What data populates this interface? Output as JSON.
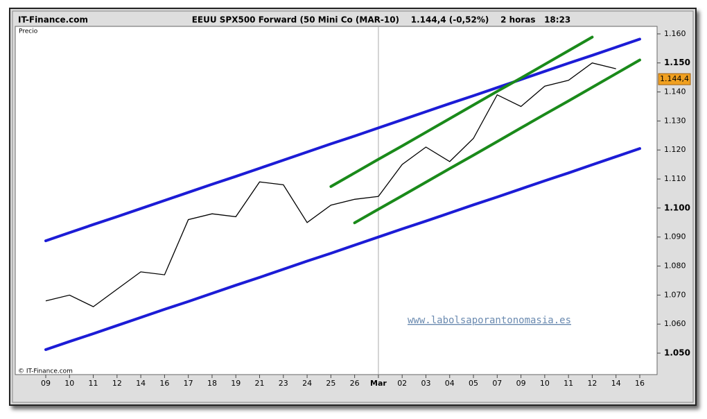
{
  "chart_data": {
    "type": "line",
    "source": "IT-Finance.com",
    "title": "EEUU SPX500 Forward (50 Mini Co (MAR-10)    1.144,4 (-0,52%)    2 horas   18:23",
    "y_label": "Precio",
    "copyright": "© IT-Finance.com",
    "watermark": "www.labolsaporantonomasia.es",
    "categories": [
      "09",
      "10",
      "11",
      "12",
      "14",
      "16",
      "17",
      "18",
      "19",
      "21",
      "23",
      "24",
      "25",
      "26",
      "Mar",
      "02",
      "03",
      "04",
      "05",
      "07",
      "09",
      "10",
      "11",
      "12",
      "14",
      "16"
    ],
    "series": [
      {
        "name": "Precio",
        "color": "#000000",
        "values": [
          1.068,
          1.07,
          1.066,
          1.072,
          1.078,
          1.077,
          1.096,
          1.098,
          1.097,
          1.109,
          1.108,
          1.095,
          1.101,
          1.103,
          1.104,
          1.115,
          1.121,
          1.116,
          1.124,
          1.139,
          1.135,
          1.142,
          1.144,
          1.15,
          1.148,
          null
        ]
      }
    ],
    "trendlines": [
      {
        "color": "#1c1cd6",
        "values": [
          1.0887,
          1.0915,
          1.0943,
          1.097,
          1.0998,
          1.1026,
          1.1054,
          1.1082,
          1.1109,
          1.1137,
          1.1165,
          1.1193,
          1.1221,
          1.1248,
          1.1276,
          1.1304,
          1.1332,
          1.136,
          1.1387,
          1.1415,
          1.1443,
          1.1471,
          1.1499,
          1.1526,
          1.1554,
          1.1582
        ]
      },
      {
        "color": "#1c1cd6",
        "values": [
          1.0512,
          1.054,
          1.0567,
          1.0595,
          1.0623,
          1.0651,
          1.0678,
          1.0706,
          1.0734,
          1.0761,
          1.0789,
          1.0817,
          1.0844,
          1.0872,
          1.09,
          1.0928,
          1.0955,
          1.0983,
          1.1011,
          1.1038,
          1.1066,
          1.1094,
          1.1121,
          1.1149,
          1.1177,
          1.1205
        ]
      },
      {
        "color": "#1a8a1a",
        "values": [
          null,
          null,
          null,
          null,
          null,
          null,
          null,
          null,
          null,
          null,
          null,
          null,
          1.1074,
          1.1121,
          1.1168,
          1.1214,
          1.1261,
          1.1308,
          1.1355,
          1.1402,
          1.1448,
          1.1495,
          1.1542,
          1.1589,
          null,
          null
        ]
      },
      {
        "color": "#1a8a1a",
        "values": [
          null,
          null,
          null,
          null,
          null,
          null,
          null,
          null,
          null,
          null,
          null,
          null,
          null,
          1.0949,
          1.0996,
          1.1042,
          1.1089,
          1.1136,
          1.1182,
          1.1229,
          1.1276,
          1.1323,
          1.1369,
          1.1416,
          1.1463,
          1.151
        ]
      }
    ],
    "last_price": {
      "value": 1.1444,
      "label": "1.144,4"
    },
    "last_price_color": "#f0a020",
    "ylim": [
      1.0426,
      1.1626
    ],
    "yticks": [
      {
        "value": 1.05,
        "label": "1.050"
      },
      {
        "value": 1.06,
        "label": "1.060"
      },
      {
        "value": 1.07,
        "label": "1.070"
      },
      {
        "value": 1.08,
        "label": "1.080"
      },
      {
        "value": 1.09,
        "label": "1.090"
      },
      {
        "value": 1.1,
        "label": "1.100"
      },
      {
        "value": 1.11,
        "label": "1.110"
      },
      {
        "value": 1.12,
        "label": "1.120"
      },
      {
        "value": 1.13,
        "label": "1.130"
      },
      {
        "value": 1.14,
        "label": "1.140"
      },
      {
        "value": 1.15,
        "label": "1.150"
      },
      {
        "value": 1.16,
        "label": "1.160"
      }
    ],
    "month_marker": "Mar"
  }
}
